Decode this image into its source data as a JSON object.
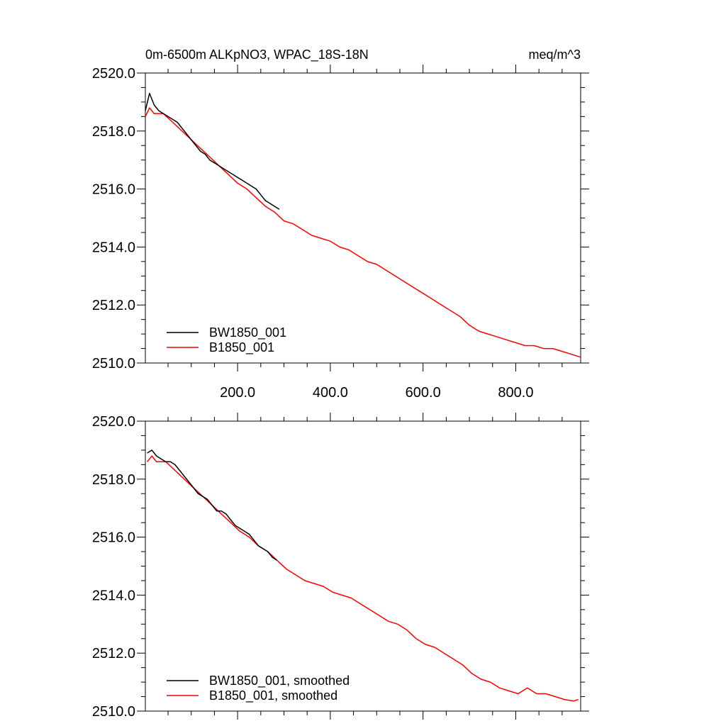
{
  "colors": {
    "series_bw": "#000000",
    "series_b": "#ff0000",
    "frame": "#000000",
    "background": "#ffffff"
  },
  "chart_data": [
    {
      "type": "line",
      "title": "0m-6500m ALKpNO3, WPAC_18S-18N",
      "units": "meq/m^3",
      "xlim": [
        1,
        940
      ],
      "ylim": [
        2510.0,
        2520.0
      ],
      "x_ticks": [
        "200.0",
        "400.0",
        "600.0",
        "800.0"
      ],
      "y_ticks": [
        "2510.0",
        "2512.0",
        "2514.0",
        "2516.0",
        "2518.0",
        "2520.0"
      ],
      "legend_position": "bottom-left",
      "grid": false,
      "series": [
        {
          "name": "BW1850_001",
          "color": "#000000",
          "x": [
            1,
            10,
            20,
            30,
            40,
            50,
            60,
            70,
            80,
            90,
            100,
            110,
            120,
            130,
            140,
            150,
            160,
            170,
            180,
            190,
            200,
            210,
            220,
            230,
            240,
            250,
            260,
            270,
            280,
            290
          ],
          "y": [
            2518.7,
            2519.3,
            2518.9,
            2518.7,
            2518.6,
            2518.5,
            2518.4,
            2518.3,
            2518.1,
            2517.9,
            2517.7,
            2517.5,
            2517.3,
            2517.2,
            2517.0,
            2516.9,
            2516.8,
            2516.7,
            2516.6,
            2516.5,
            2516.4,
            2516.3,
            2516.2,
            2516.1,
            2516.0,
            2515.8,
            2515.6,
            2515.5,
            2515.4,
            2515.3
          ]
        },
        {
          "name": "B1850_001",
          "color": "#ff0000",
          "x": [
            1,
            10,
            20,
            40,
            60,
            80,
            100,
            120,
            140,
            160,
            180,
            200,
            220,
            240,
            260,
            280,
            300,
            320,
            340,
            360,
            380,
            400,
            420,
            440,
            460,
            480,
            500,
            520,
            540,
            560,
            580,
            600,
            620,
            640,
            660,
            680,
            700,
            720,
            740,
            760,
            780,
            800,
            820,
            840,
            860,
            880,
            900,
            920,
            940
          ],
          "y": [
            2518.5,
            2518.8,
            2518.6,
            2518.6,
            2518.3,
            2518.0,
            2517.7,
            2517.4,
            2517.1,
            2516.8,
            2516.5,
            2516.2,
            2516.0,
            2515.7,
            2515.4,
            2515.2,
            2514.9,
            2514.8,
            2514.6,
            2514.4,
            2514.3,
            2514.2,
            2514.0,
            2513.9,
            2513.7,
            2513.5,
            2513.4,
            2513.2,
            2513.0,
            2512.8,
            2512.6,
            2512.4,
            2512.2,
            2512.0,
            2511.8,
            2511.6,
            2511.3,
            2511.1,
            2511.0,
            2510.9,
            2510.8,
            2510.7,
            2510.6,
            2510.6,
            2510.5,
            2510.5,
            2510.4,
            2510.3,
            2510.2
          ]
        }
      ]
    },
    {
      "type": "line",
      "title": "",
      "xlim": [
        1,
        940
      ],
      "ylim": [
        2510.0,
        2520.0
      ],
      "x_ticks": [],
      "y_ticks": [
        "2510.0",
        "2512.0",
        "2514.0",
        "2516.0",
        "2518.0",
        "2520.0"
      ],
      "legend_position": "bottom-left",
      "grid": false,
      "series": [
        {
          "name": "BW1850_001, smoothed",
          "color": "#000000",
          "x": [
            5,
            15,
            25,
            35,
            45,
            55,
            65,
            75,
            85,
            95,
            105,
            115,
            125,
            135,
            145,
            155,
            165,
            175,
            185,
            195,
            205,
            215,
            225,
            235,
            245,
            255,
            265,
            275,
            285
          ],
          "y": [
            2518.9,
            2519.0,
            2518.8,
            2518.7,
            2518.6,
            2518.6,
            2518.5,
            2518.3,
            2518.1,
            2517.9,
            2517.7,
            2517.5,
            2517.4,
            2517.3,
            2517.1,
            2516.9,
            2516.9,
            2516.8,
            2516.6,
            2516.4,
            2516.3,
            2516.2,
            2516.1,
            2515.9,
            2515.7,
            2515.6,
            2515.5,
            2515.3,
            2515.2
          ]
        },
        {
          "name": "B1850_001, smoothed",
          "color": "#ff0000",
          "x": [
            5,
            15,
            25,
            45,
            65,
            85,
            105,
            125,
            145,
            165,
            185,
            205,
            225,
            245,
            265,
            285,
            305,
            325,
            345,
            365,
            385,
            405,
            425,
            445,
            465,
            485,
            505,
            525,
            545,
            565,
            585,
            605,
            625,
            645,
            665,
            685,
            705,
            725,
            745,
            765,
            785,
            805,
            825,
            845,
            865,
            885,
            905,
            925,
            935
          ],
          "y": [
            2518.6,
            2518.8,
            2518.6,
            2518.6,
            2518.3,
            2518.0,
            2517.7,
            2517.4,
            2517.1,
            2516.8,
            2516.5,
            2516.2,
            2516.0,
            2515.7,
            2515.5,
            2515.2,
            2514.9,
            2514.7,
            2514.5,
            2514.4,
            2514.3,
            2514.1,
            2514.0,
            2513.9,
            2513.7,
            2513.5,
            2513.3,
            2513.1,
            2513.0,
            2512.8,
            2512.5,
            2512.3,
            2512.2,
            2512.0,
            2511.8,
            2511.6,
            2511.3,
            2511.1,
            2511.0,
            2510.8,
            2510.7,
            2510.6,
            2510.8,
            2510.6,
            2510.6,
            2510.5,
            2510.4,
            2510.35,
            2510.4
          ]
        }
      ]
    }
  ]
}
